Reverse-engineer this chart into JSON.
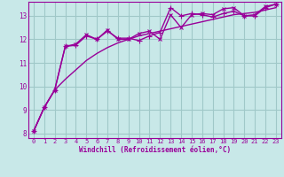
{
  "x": [
    0,
    1,
    2,
    3,
    4,
    5,
    6,
    7,
    8,
    9,
    10,
    11,
    12,
    13,
    14,
    15,
    16,
    17,
    18,
    19,
    20,
    21,
    22,
    23
  ],
  "line1": [
    8.1,
    9.1,
    9.85,
    11.7,
    11.8,
    12.2,
    12.0,
    12.4,
    12.0,
    12.0,
    12.25,
    12.35,
    12.0,
    13.05,
    12.5,
    13.05,
    13.1,
    13.05,
    13.3,
    13.35,
    13.0,
    13.05,
    13.4,
    13.5
  ],
  "line2": [
    8.1,
    9.1,
    9.85,
    11.7,
    11.75,
    12.15,
    12.0,
    12.35,
    12.05,
    12.05,
    11.95,
    12.15,
    12.3,
    13.35,
    13.0,
    13.1,
    13.05,
    12.95,
    13.1,
    13.2,
    13.0,
    13.0,
    13.35,
    13.5
  ],
  "line3": [
    8.1,
    9.1,
    9.85,
    10.3,
    10.7,
    11.1,
    11.4,
    11.65,
    11.85,
    12.0,
    12.15,
    12.25,
    12.35,
    12.45,
    12.55,
    12.65,
    12.75,
    12.85,
    12.95,
    13.05,
    13.1,
    13.15,
    13.25,
    13.35
  ],
  "color": "#990099",
  "bg_color": "#c8e8e8",
  "grid_color": "#a0c8c8",
  "xlabel": "Windchill (Refroidissement éolien,°C)",
  "ylim": [
    7.8,
    13.6
  ],
  "xlim": [
    -0.5,
    23.5
  ],
  "yticks": [
    8,
    9,
    10,
    11,
    12,
    13
  ],
  "xticks": [
    0,
    1,
    2,
    3,
    4,
    5,
    6,
    7,
    8,
    9,
    10,
    11,
    12,
    13,
    14,
    15,
    16,
    17,
    18,
    19,
    20,
    21,
    22,
    23
  ]
}
